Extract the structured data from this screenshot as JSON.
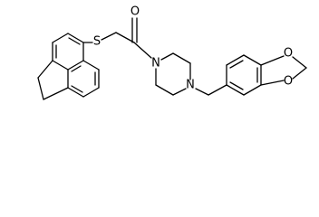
{
  "atoms": [
    {
      "label": "S"
    },
    {
      "label": "O"
    },
    {
      "label": "N"
    },
    {
      "label": "N"
    },
    {
      "label": "O"
    },
    {
      "label": "O"
    }
  ]
}
